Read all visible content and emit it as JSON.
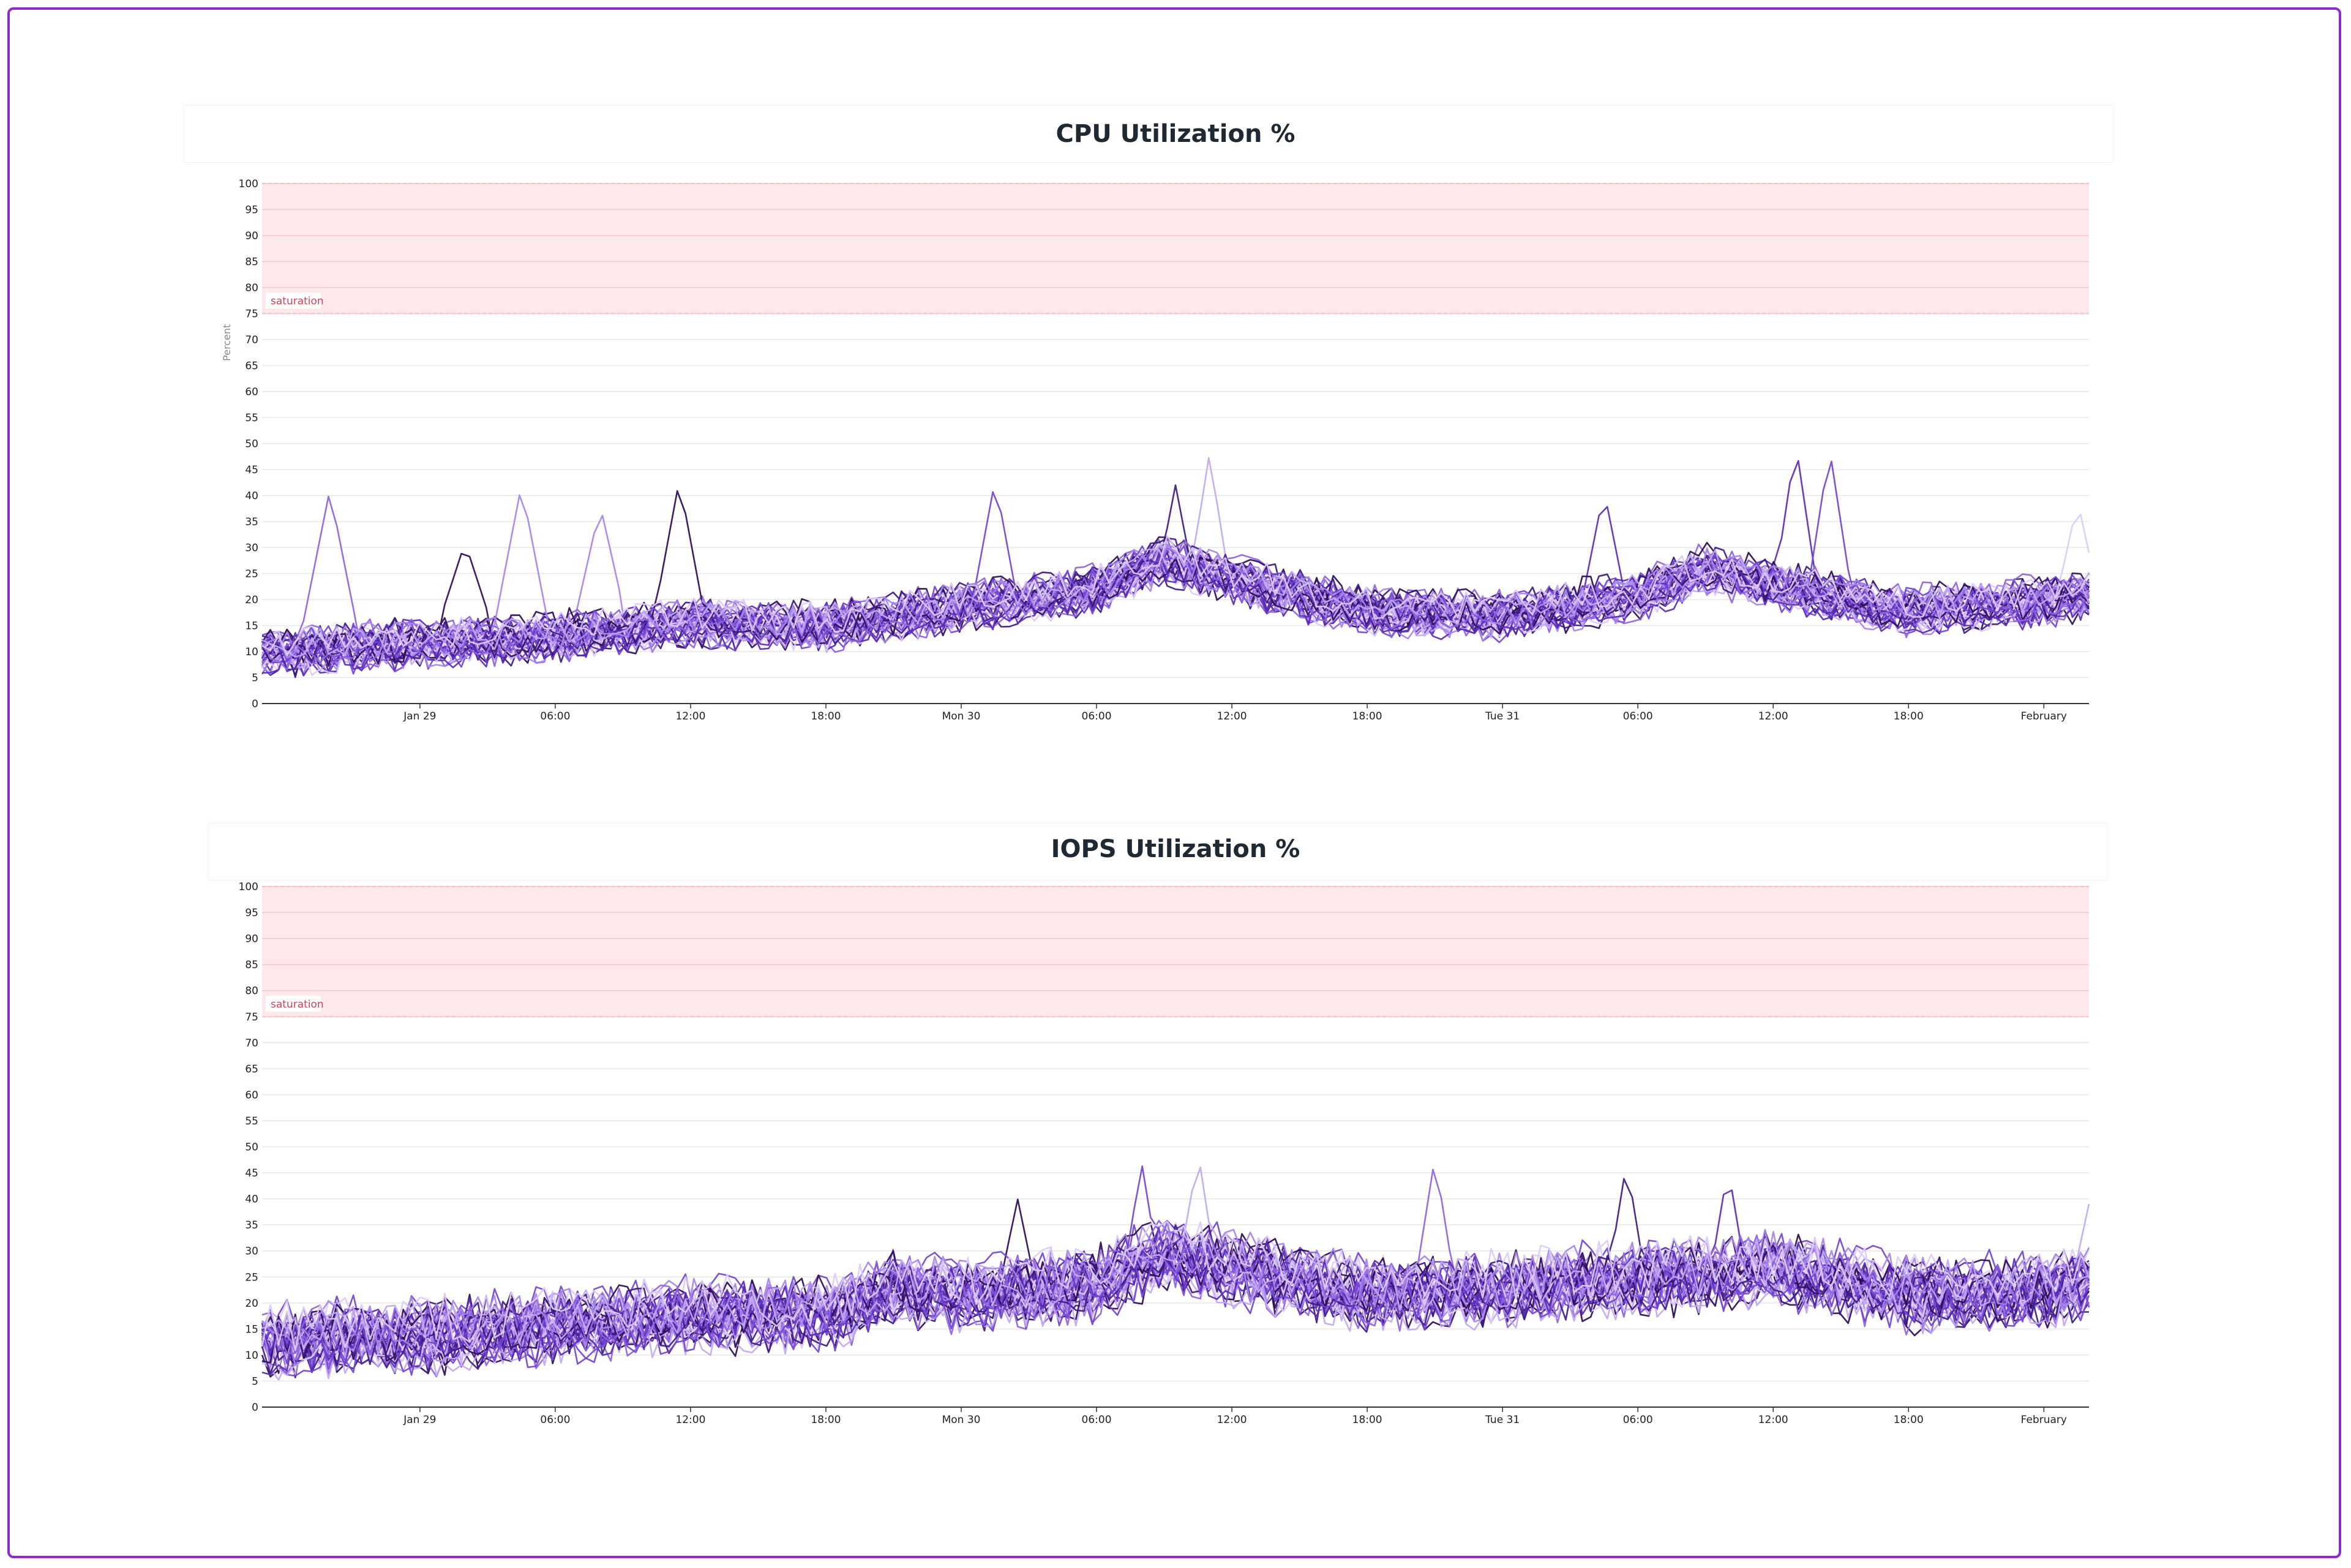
{
  "charts": [
    {
      "title": "CPU Utilization %"
    },
    {
      "title": "IOPS Utilization %"
    }
  ],
  "chart_data": [
    {
      "type": "line",
      "title": "CPU Utilization %",
      "ylabel": "Percent",
      "xlabel": "",
      "ylim": [
        0,
        100
      ],
      "yticks": [
        0,
        5,
        10,
        15,
        20,
        25,
        30,
        35,
        40,
        45,
        50,
        55,
        60,
        65,
        70,
        75,
        80,
        85,
        90,
        95,
        100
      ],
      "x_range": [
        "2023-01-28T17:00",
        "2023-02-01T02:00"
      ],
      "x_tick_labels": [
        "Jan 29",
        "06:00",
        "12:00",
        "18:00",
        "Mon 30",
        "06:00",
        "12:00",
        "18:00",
        "Tue 31",
        "06:00",
        "12:00",
        "18:00",
        "February"
      ],
      "x_tick_times": [
        "2023-01-29T00:00",
        "2023-01-29T06:00",
        "2023-01-29T12:00",
        "2023-01-29T18:00",
        "2023-01-30T00:00",
        "2023-01-30T06:00",
        "2023-01-30T12:00",
        "2023-01-30T18:00",
        "2023-01-31T00:00",
        "2023-01-31T06:00",
        "2023-01-31T12:00",
        "2023-01-31T18:00",
        "2023-02-01T00:00"
      ],
      "threshold_band": {
        "label": "saturation",
        "from": 75,
        "to": 100,
        "color": "#fde8ea"
      },
      "grid": true,
      "series_count": 40,
      "series_colors": [
        "#2d0b57",
        "#3f1a85",
        "#5b2bb8",
        "#7444d4",
        "#8f63e0",
        "#a784ea",
        "#c2a8f2",
        "#dccbf8"
      ],
      "baseline": {
        "x": [
          "2023-01-28T17:00",
          "2023-01-29T00:00",
          "2023-01-29T06:00",
          "2023-01-29T12:00",
          "2023-01-29T18:00",
          "2023-01-30T00:00",
          "2023-01-30T06:00",
          "2023-01-30T09:00",
          "2023-01-30T12:00",
          "2023-01-30T18:00",
          "2023-01-31T00:00",
          "2023-01-31T06:00",
          "2023-01-31T09:00",
          "2023-01-31T12:00",
          "2023-01-31T18:00",
          "2023-02-01T00:00",
          "2023-02-01T02:00"
        ],
        "y": [
          10,
          12,
          13,
          16,
          15,
          19,
          22,
          28,
          24,
          18,
          17,
          21,
          26,
          23,
          18,
          20,
          21
        ]
      },
      "spikes": [
        {
          "x": "2023-01-28T20:00",
          "y": 41
        },
        {
          "x": "2023-01-29T02:00",
          "y": 31
        },
        {
          "x": "2023-01-29T04:30",
          "y": 42
        },
        {
          "x": "2023-01-29T08:00",
          "y": 38
        },
        {
          "x": "2023-01-29T11:30",
          "y": 43
        },
        {
          "x": "2023-01-30T01:30",
          "y": 43
        },
        {
          "x": "2023-01-30T09:30",
          "y": 42
        },
        {
          "x": "2023-01-30T11:00",
          "y": 48
        },
        {
          "x": "2023-01-31T04:30",
          "y": 41
        },
        {
          "x": "2023-01-31T13:00",
          "y": 50
        },
        {
          "x": "2023-01-31T14:30",
          "y": 49
        },
        {
          "x": "2023-02-01T01:30",
          "y": 39
        }
      ]
    },
    {
      "type": "line",
      "title": "IOPS Utilization %",
      "ylabel": "",
      "xlabel": "",
      "ylim": [
        0,
        100
      ],
      "yticks": [
        0,
        5,
        10,
        15,
        20,
        25,
        30,
        35,
        40,
        45,
        50,
        55,
        60,
        65,
        70,
        75,
        80,
        85,
        90,
        95,
        100
      ],
      "x_range": [
        "2023-01-28T17:00",
        "2023-02-01T02:00"
      ],
      "x_tick_labels": [
        "Jan 29",
        "06:00",
        "12:00",
        "18:00",
        "Mon 30",
        "06:00",
        "12:00",
        "18:00",
        "Tue 31",
        "06:00",
        "12:00",
        "18:00",
        "February"
      ],
      "x_tick_times": [
        "2023-01-29T00:00",
        "2023-01-29T06:00",
        "2023-01-29T12:00",
        "2023-01-29T18:00",
        "2023-01-30T00:00",
        "2023-01-30T06:00",
        "2023-01-30T12:00",
        "2023-01-30T18:00",
        "2023-01-31T00:00",
        "2023-01-31T06:00",
        "2023-01-31T12:00",
        "2023-01-31T18:00",
        "2023-02-01T00:00"
      ],
      "threshold_band": {
        "label": "saturation",
        "from": 75,
        "to": 100,
        "color": "#fde8ea"
      },
      "grid": true,
      "series_count": 40,
      "series_colors": [
        "#2d0b57",
        "#3f1a85",
        "#5b2bb8",
        "#7444d4",
        "#8f63e0",
        "#a784ea",
        "#c2a8f2",
        "#dccbf8"
      ],
      "baseline": {
        "x": [
          "2023-01-28T17:00",
          "2023-01-29T00:00",
          "2023-01-29T06:00",
          "2023-01-29T12:00",
          "2023-01-29T18:00",
          "2023-01-29T21:00",
          "2023-01-30T00:00",
          "2023-01-30T06:00",
          "2023-01-30T09:00",
          "2023-01-30T12:00",
          "2023-01-30T18:00",
          "2023-01-31T00:00",
          "2023-01-31T06:00",
          "2023-01-31T09:00",
          "2023-01-31T12:00",
          "2023-01-31T18:00",
          "2023-02-01T00:00",
          "2023-02-01T02:00"
        ],
        "y": [
          13,
          14,
          16,
          18,
          18,
          23,
          22,
          24,
          30,
          27,
          22,
          23,
          25,
          26,
          27,
          22,
          23,
          24
        ]
      },
      "spikes": [
        {
          "x": "2023-01-30T02:30",
          "y": 40
        },
        {
          "x": "2023-01-30T08:00",
          "y": 47
        },
        {
          "x": "2023-01-30T10:30",
          "y": 49
        },
        {
          "x": "2023-01-30T21:00",
          "y": 48
        },
        {
          "x": "2023-01-31T05:30",
          "y": 47
        },
        {
          "x": "2023-01-31T10:00",
          "y": 46
        },
        {
          "x": "2023-02-01T02:00",
          "y": 39
        }
      ]
    }
  ]
}
